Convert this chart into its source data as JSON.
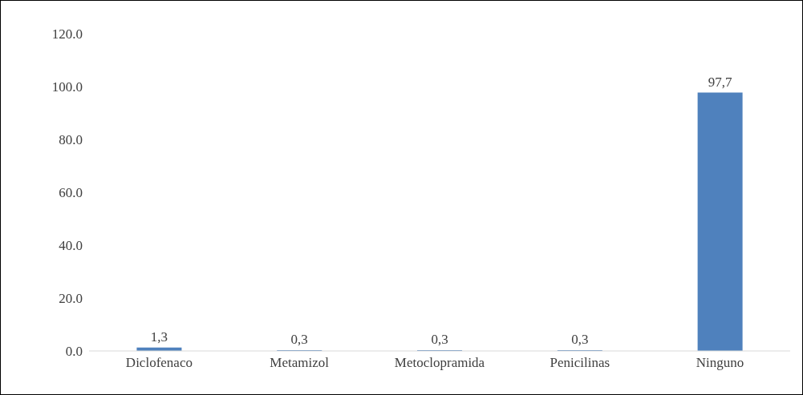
{
  "chart_data": {
    "type": "bar",
    "categories": [
      "Diclofenaco",
      "Metamizol",
      "Metoclopramida",
      "Penicilinas",
      "Ninguno"
    ],
    "values": [
      1.3,
      0.3,
      0.3,
      0.3,
      97.7
    ],
    "value_labels": [
      "1,3",
      "0,3",
      "0,3",
      "0,3",
      "97,7"
    ],
    "color": "#4f81bd",
    "ylim": [
      0,
      120
    ],
    "yticks": [
      {
        "value": 0,
        "label": "0.0"
      },
      {
        "value": 20,
        "label": "20.0"
      },
      {
        "value": 40,
        "label": "40.0"
      },
      {
        "value": 60,
        "label": "60.0"
      },
      {
        "value": 80,
        "label": "80.0"
      },
      {
        "value": 100,
        "label": "100.0"
      },
      {
        "value": 120,
        "label": "120.0"
      }
    ]
  }
}
